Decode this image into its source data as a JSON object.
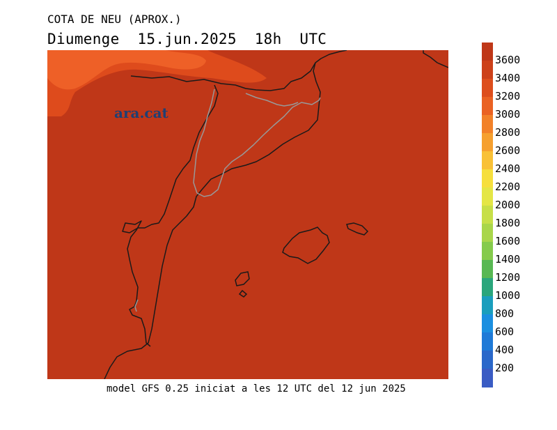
{
  "header": {
    "title": "COTA DE NEU (APROX.)",
    "subtitle": "Diumenge  15.jun.2025  18h  UTC"
  },
  "map": {
    "logo": "ara.cat",
    "field_value_m": 3700,
    "field_color": "#bf3718",
    "upper_band_color": "#de4b1c",
    "top_band_color": "#ee6027",
    "coast_color": "#1a1a1a",
    "border_color": "#999999"
  },
  "caption": "model GFS 0.25 iniciat a les 12 UTC del 12 jun 2025",
  "legend": {
    "labels": [
      "3600",
      "3400",
      "3200",
      "3000",
      "2800",
      "2600",
      "2400",
      "2200",
      "2000",
      "1800",
      "1600",
      "1400",
      "1200",
      "1000",
      "800",
      "600",
      "400",
      "200"
    ],
    "colors": [
      "#bf3718",
      "#cd411a",
      "#dd4e1d",
      "#ea6223",
      "#f28129",
      "#f6a02f",
      "#f9c137",
      "#f6df3d",
      "#e4e646",
      "#c7df48",
      "#a9d64a",
      "#85cb4c",
      "#58b853",
      "#2aa67c",
      "#1a9ebd",
      "#1b8fe0",
      "#1f7ad7",
      "#2b68ca",
      "#3a5cc4"
    ]
  }
}
